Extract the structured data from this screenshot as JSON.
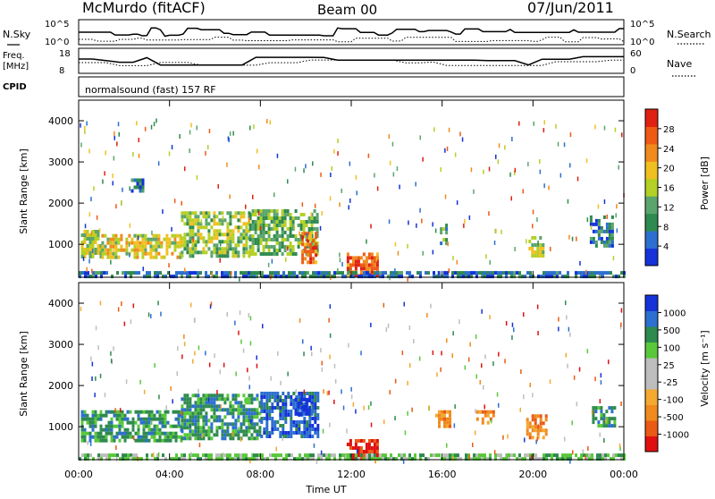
{
  "header": {
    "station": "McMurdo (fitACF)",
    "beam": "Beam 00",
    "date": "07/Jun/2011"
  },
  "top_panels": {
    "nsky_label": "N.Sky",
    "nsearch_label": "N.Search",
    "nsky_ticks": [
      "10^5",
      "10^0"
    ],
    "nsearch_ticks": [
      "10^5",
      "10^0"
    ],
    "freq_label_1": "Freq.",
    "freq_label_2": "[MHz]",
    "freq_ticks": [
      "18",
      "8"
    ],
    "nave_label": "Nave",
    "nave_ticks": [
      "60",
      "0"
    ],
    "cpid_label": "CPID",
    "cpid_text": "normalsound (fast) 157 RF"
  },
  "colors": {
    "power": [
      "#1533d8",
      "#2c6fd0",
      "#2e8a4e",
      "#5aa56c",
      "#b3d024",
      "#f0c020",
      "#f08a1c",
      "#ee5a14",
      "#e02010"
    ],
    "velocity": [
      "#e01010",
      "#ea5a14",
      "#f08a1c",
      "#f4a830",
      "#bdbdbd",
      "#bdbdbd",
      "#58c83a",
      "#2e8a4e",
      "#2c6fd0",
      "#1533d8"
    ]
  },
  "chart_data": [
    {
      "type": "heatmap",
      "panel": "power",
      "ylabel": "Slant Range [km]",
      "xlabel": "",
      "yticks": [
        "1000",
        "2000",
        "3000",
        "4000"
      ],
      "ylim": [
        200,
        4500
      ],
      "xlim": [
        0,
        24
      ],
      "colorbar_label": "Power [dB]",
      "colorbar_ticks": [
        "4",
        "8",
        "12",
        "16",
        "20",
        "24",
        "28"
      ],
      "colorbar_range": [
        0,
        32
      ],
      "blobs": [
        {
          "x0": 0.1,
          "x1": 1.0,
          "r0": 700,
          "r1": 1350,
          "v": 16
        },
        {
          "x0": 1.0,
          "x1": 4.5,
          "r0": 650,
          "r1": 1250,
          "v": 18
        },
        {
          "x0": 4.5,
          "x1": 7.5,
          "r0": 750,
          "r1": 1800,
          "v": 14
        },
        {
          "x0": 7.5,
          "x1": 10.5,
          "r0": 800,
          "r1": 1850,
          "v": 12
        },
        {
          "x0": 9.8,
          "x1": 10.4,
          "r0": 600,
          "r1": 1300,
          "v": 26
        },
        {
          "x0": 2.3,
          "x1": 2.8,
          "r0": 2300,
          "r1": 2600,
          "v": 6
        },
        {
          "x0": 11.8,
          "x1": 13.2,
          "r0": 200,
          "r1": 800,
          "v": 27
        },
        {
          "x0": 15.9,
          "x1": 16.2,
          "r0": 1000,
          "r1": 1500,
          "v": 10
        },
        {
          "x0": 19.8,
          "x1": 20.5,
          "r0": 700,
          "r1": 1200,
          "v": 16
        },
        {
          "x0": 22.5,
          "x1": 23.5,
          "r0": 1000,
          "r1": 1700,
          "v": 6
        },
        {
          "x0": 0,
          "x1": 24,
          "r0": 200,
          "r1": 350,
          "v": 5
        }
      ]
    },
    {
      "type": "heatmap",
      "panel": "velocity",
      "ylabel": "Slant Range [km]",
      "xlabel": "Time UT",
      "yticks": [
        "1000",
        "2000",
        "3000",
        "4000"
      ],
      "xticks": [
        "00:00",
        "04:00",
        "08:00",
        "12:00",
        "16:00",
        "20:00",
        "00:00"
      ],
      "ylim": [
        200,
        4500
      ],
      "xlim": [
        0,
        24
      ],
      "colorbar_label": "Velocity [m s⁻¹]",
      "colorbar_ticks": [
        "-1000",
        "-500",
        "-100",
        "-25",
        "25",
        "100",
        "500",
        "1000"
      ],
      "blobs": [
        {
          "x0": 0.1,
          "x1": 4.5,
          "r0": 700,
          "r1": 1400,
          "v": 7
        },
        {
          "x0": 4.5,
          "x1": 8.0,
          "r0": 700,
          "r1": 1800,
          "v": 7
        },
        {
          "x0": 8.0,
          "x1": 10.5,
          "r0": 750,
          "r1": 1850,
          "v": 8
        },
        {
          "x0": 9.5,
          "x1": 10.3,
          "r0": 1300,
          "r1": 1700,
          "v": 9
        },
        {
          "x0": 15.7,
          "x1": 16.3,
          "r0": 1000,
          "r1": 1400,
          "v": 2
        },
        {
          "x0": 17.5,
          "x1": 18.3,
          "r0": 1100,
          "r1": 1400,
          "v": 2
        },
        {
          "x0": 19.7,
          "x1": 20.6,
          "r0": 700,
          "r1": 1300,
          "v": 2
        },
        {
          "x0": 22.6,
          "x1": 23.6,
          "r0": 1000,
          "r1": 1500,
          "v": 7
        },
        {
          "x0": 11.8,
          "x1": 13.2,
          "r0": 200,
          "r1": 700,
          "v": 0
        },
        {
          "x0": 0,
          "x1": 24,
          "r0": 200,
          "r1": 350,
          "v": 6
        }
      ]
    }
  ]
}
